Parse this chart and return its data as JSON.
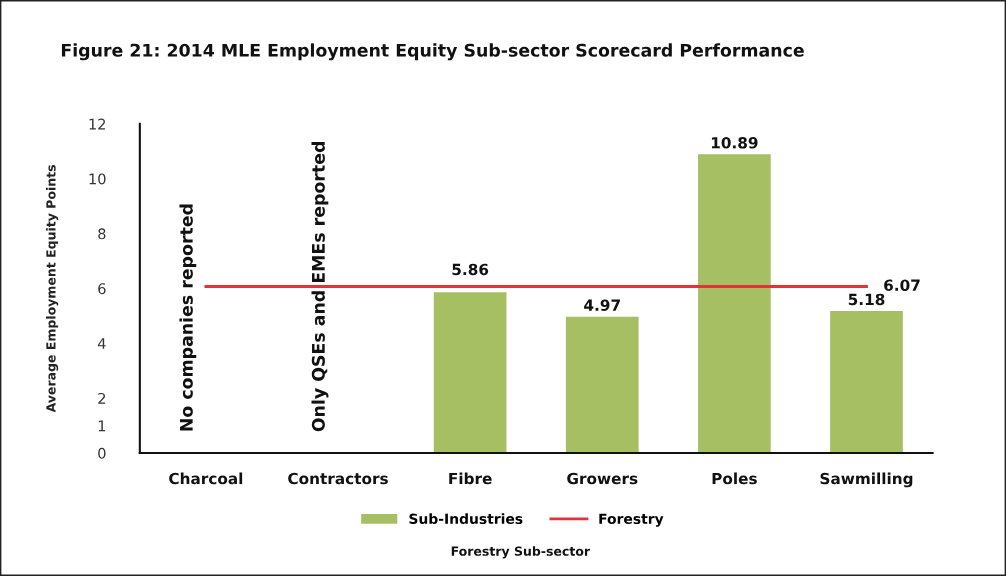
{
  "chart_data": {
    "type": "bar",
    "title": "Figure 21: 2014 MLE Employment Equity Sub-sector Scorecard Performance",
    "xlabel": "Forestry Sub-sector",
    "ylabel": "Average Employment Equity Points",
    "categories": [
      "Charcoal",
      "Contractors",
      "Fibre",
      "Growers",
      "Poles",
      "Sawmilling"
    ],
    "series": [
      {
        "name": "Sub-Industries",
        "color": "#a6bf62",
        "values": [
          null,
          null,
          5.86,
          4.97,
          10.89,
          5.18
        ],
        "value_labels": [
          null,
          null,
          "5.86",
          "4.97",
          "10.89",
          "5.18"
        ]
      },
      {
        "name": "Forestry",
        "type": "line",
        "color": "#e2323a",
        "values": [
          6.07,
          6.07,
          6.07,
          6.07,
          6.07,
          6.07
        ],
        "value_labels": [
          null,
          null,
          null,
          null,
          null,
          "6.07"
        ]
      }
    ],
    "ylim": [
      0,
      12
    ],
    "yticks": [
      0,
      1,
      2,
      4,
      6,
      8,
      10,
      12
    ],
    "grid": false,
    "legend": "bottom",
    "marker": "none",
    "line_style": "solid",
    "annotations": [
      "No companies reported",
      "Only QSEs and EMEs reported"
    ]
  }
}
